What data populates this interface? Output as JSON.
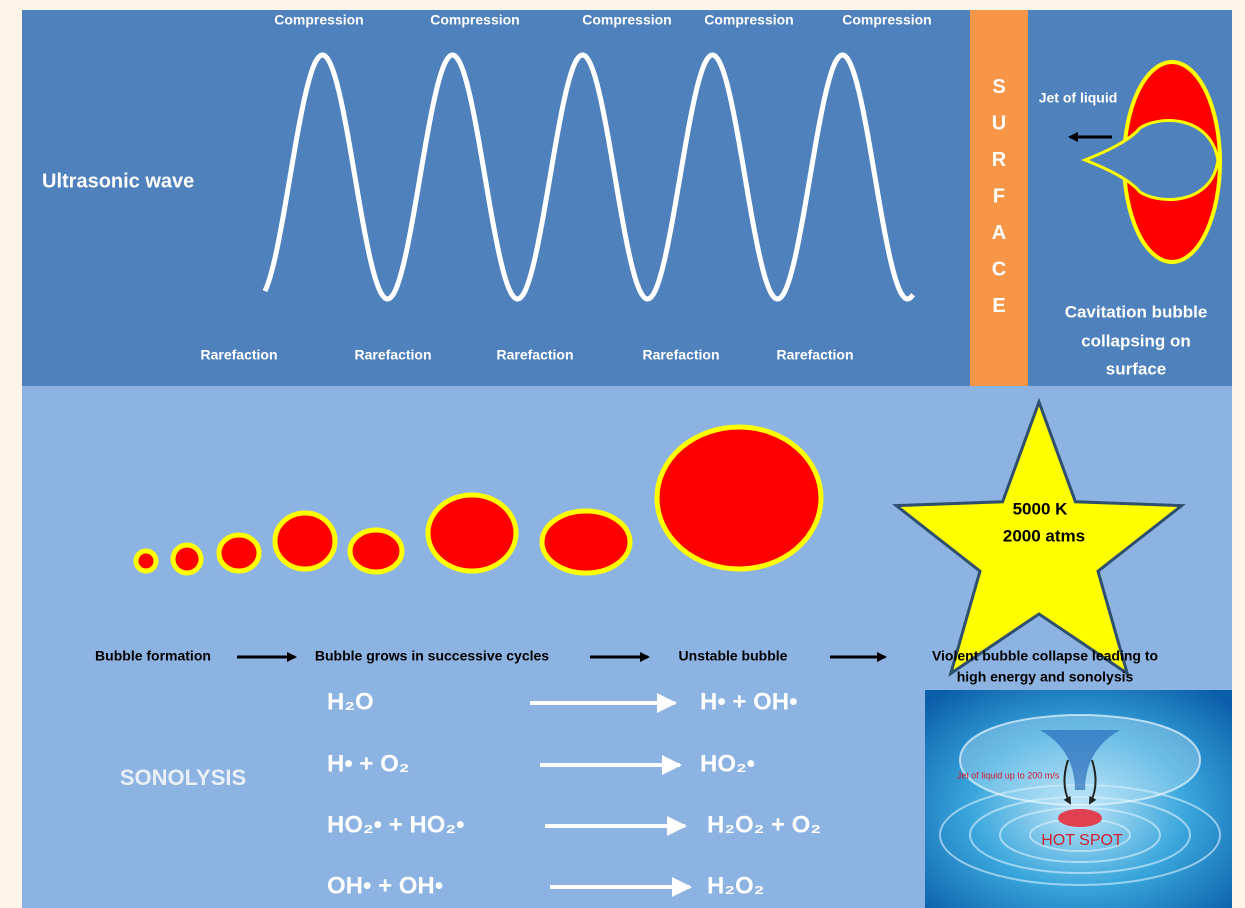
{
  "top_panel": {
    "wave_label": "Ultrasonic wave",
    "compression_labels": [
      "Compression",
      "Compression",
      "Compression",
      "Compression",
      "Compression"
    ],
    "rarefaction_labels": [
      "Rarefaction",
      "Rarefaction",
      "Rarefaction",
      "Rarefaction",
      "Rarefaction"
    ],
    "surface_label": "SURFACE",
    "jet_label": "Jet of liquid",
    "bubble_caption": [
      "Cavitation bubble",
      "collapsing on",
      "surface"
    ]
  },
  "bottom_panel": {
    "star_text": [
      "5000 K",
      "2000 atms"
    ],
    "process_steps": [
      {
        "lines": [
          "Bubble formation"
        ]
      },
      {
        "lines": [
          "Bubble grows in successive cycles"
        ]
      },
      {
        "lines": [
          "Unstable bubble"
        ]
      },
      {
        "lines": [
          "Violent bubble collapse leading to",
          "high energy and sonolysis"
        ]
      }
    ],
    "sonolysis_label": "SONOLYSIS",
    "reactions": [
      {
        "reactants": "H₂O",
        "products": "H• + OH•"
      },
      {
        "reactants": "H• + O₂",
        "products": "HO₂•"
      },
      {
        "reactants": "HO₂• + HO₂•",
        "products": "H₂O₂ + O₂"
      },
      {
        "reactants": "OH• + OH•",
        "products": "H₂O₂"
      }
    ],
    "inset": {
      "jet_label": "Jet of liquid up to 200 m/s",
      "hot_spot": "HOT SPOT"
    }
  }
}
